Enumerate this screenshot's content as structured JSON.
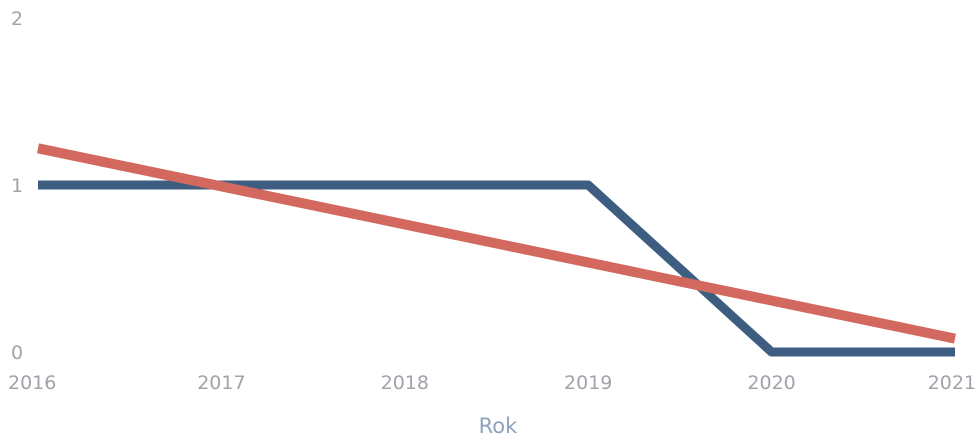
{
  "chart_data": {
    "type": "line",
    "title": "",
    "xlabel": "Rok",
    "ylabel": "",
    "x": [
      2016,
      2017,
      2018,
      2019,
      2020,
      2021
    ],
    "xlim": [
      2016,
      2021
    ],
    "ylim": [
      0,
      2
    ],
    "yticks": [
      0,
      1,
      2
    ],
    "grid": false,
    "legend": "none",
    "series": [
      {
        "values": [
          1,
          1,
          1,
          1,
          0,
          0
        ],
        "color": "#3d5e80"
      },
      {
        "trend": "linear",
        "start": 1.22,
        "end": 0.08,
        "color": "#d2685e"
      }
    ]
  }
}
